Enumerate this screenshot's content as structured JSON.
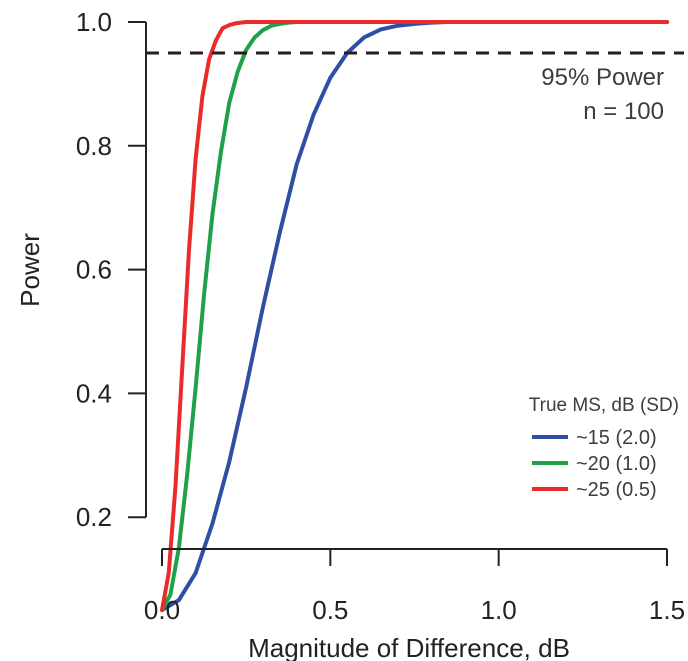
{
  "chart_data": {
    "type": "line",
    "xlabel": "Magnitude of Difference, dB",
    "ylabel": "Power",
    "xlim": [
      0,
      1.5
    ],
    "ylim": [
      0,
      1.0
    ],
    "x_ticks": [
      "0.0",
      "0.5",
      "1.0",
      "1.5"
    ],
    "y_ticks": [
      "0.2",
      "0.4",
      "0.6",
      "0.8",
      "1.0"
    ],
    "grid": false,
    "legend": {
      "title": "True MS, dB (SD)",
      "placement": "bottom-right"
    },
    "reference_line": {
      "y": 0.95,
      "style": "dashed",
      "color": "#231f20",
      "annotation_lines": [
        "95% Power",
        "n = 100"
      ]
    },
    "series": [
      {
        "name": "~15 (2.0)",
        "color": "#2e4fa3",
        "x": [
          0,
          0.05,
          0.1,
          0.15,
          0.2,
          0.25,
          0.3,
          0.35,
          0.4,
          0.45,
          0.5,
          0.55,
          0.6,
          0.65,
          0.7,
          0.75,
          0.8,
          0.85,
          0.9,
          0.95,
          1.0,
          1.1,
          1.2,
          1.3,
          1.4,
          1.5
        ],
        "values": [
          0.05,
          0.066,
          0.11,
          0.19,
          0.29,
          0.41,
          0.54,
          0.66,
          0.77,
          0.85,
          0.91,
          0.95,
          0.975,
          0.988,
          0.994,
          0.997,
          0.999,
          1.0,
          1.0,
          1.0,
          1.0,
          1.0,
          1.0,
          1.0,
          1.0,
          1.0
        ]
      },
      {
        "name": "~20 (1.0)",
        "color": "#1fa14a",
        "x": [
          0,
          0.025,
          0.05,
          0.075,
          0.1,
          0.125,
          0.15,
          0.175,
          0.2,
          0.225,
          0.25,
          0.275,
          0.3,
          0.325,
          0.35,
          0.375,
          0.4,
          0.45,
          0.5,
          0.55,
          0.6,
          0.8,
          1.0,
          1.2,
          1.5
        ],
        "values": [
          0.05,
          0.075,
          0.15,
          0.27,
          0.41,
          0.56,
          0.69,
          0.79,
          0.87,
          0.92,
          0.955,
          0.975,
          0.987,
          0.994,
          0.997,
          0.999,
          1.0,
          1.0,
          1.0,
          1.0,
          1.0,
          1.0,
          1.0,
          1.0,
          1.0
        ]
      },
      {
        "name": "~25 (0.5)",
        "color": "#ec2a2a",
        "x": [
          0,
          0.02,
          0.04,
          0.06,
          0.08,
          0.1,
          0.12,
          0.14,
          0.16,
          0.18,
          0.2,
          0.22,
          0.25,
          0.3,
          0.4,
          0.6,
          1.0,
          1.5
        ],
        "values": [
          0.05,
          0.11,
          0.25,
          0.44,
          0.63,
          0.78,
          0.88,
          0.94,
          0.97,
          0.99,
          0.995,
          0.998,
          1.0,
          1.0,
          1.0,
          1.0,
          1.0,
          1.0
        ]
      }
    ]
  }
}
